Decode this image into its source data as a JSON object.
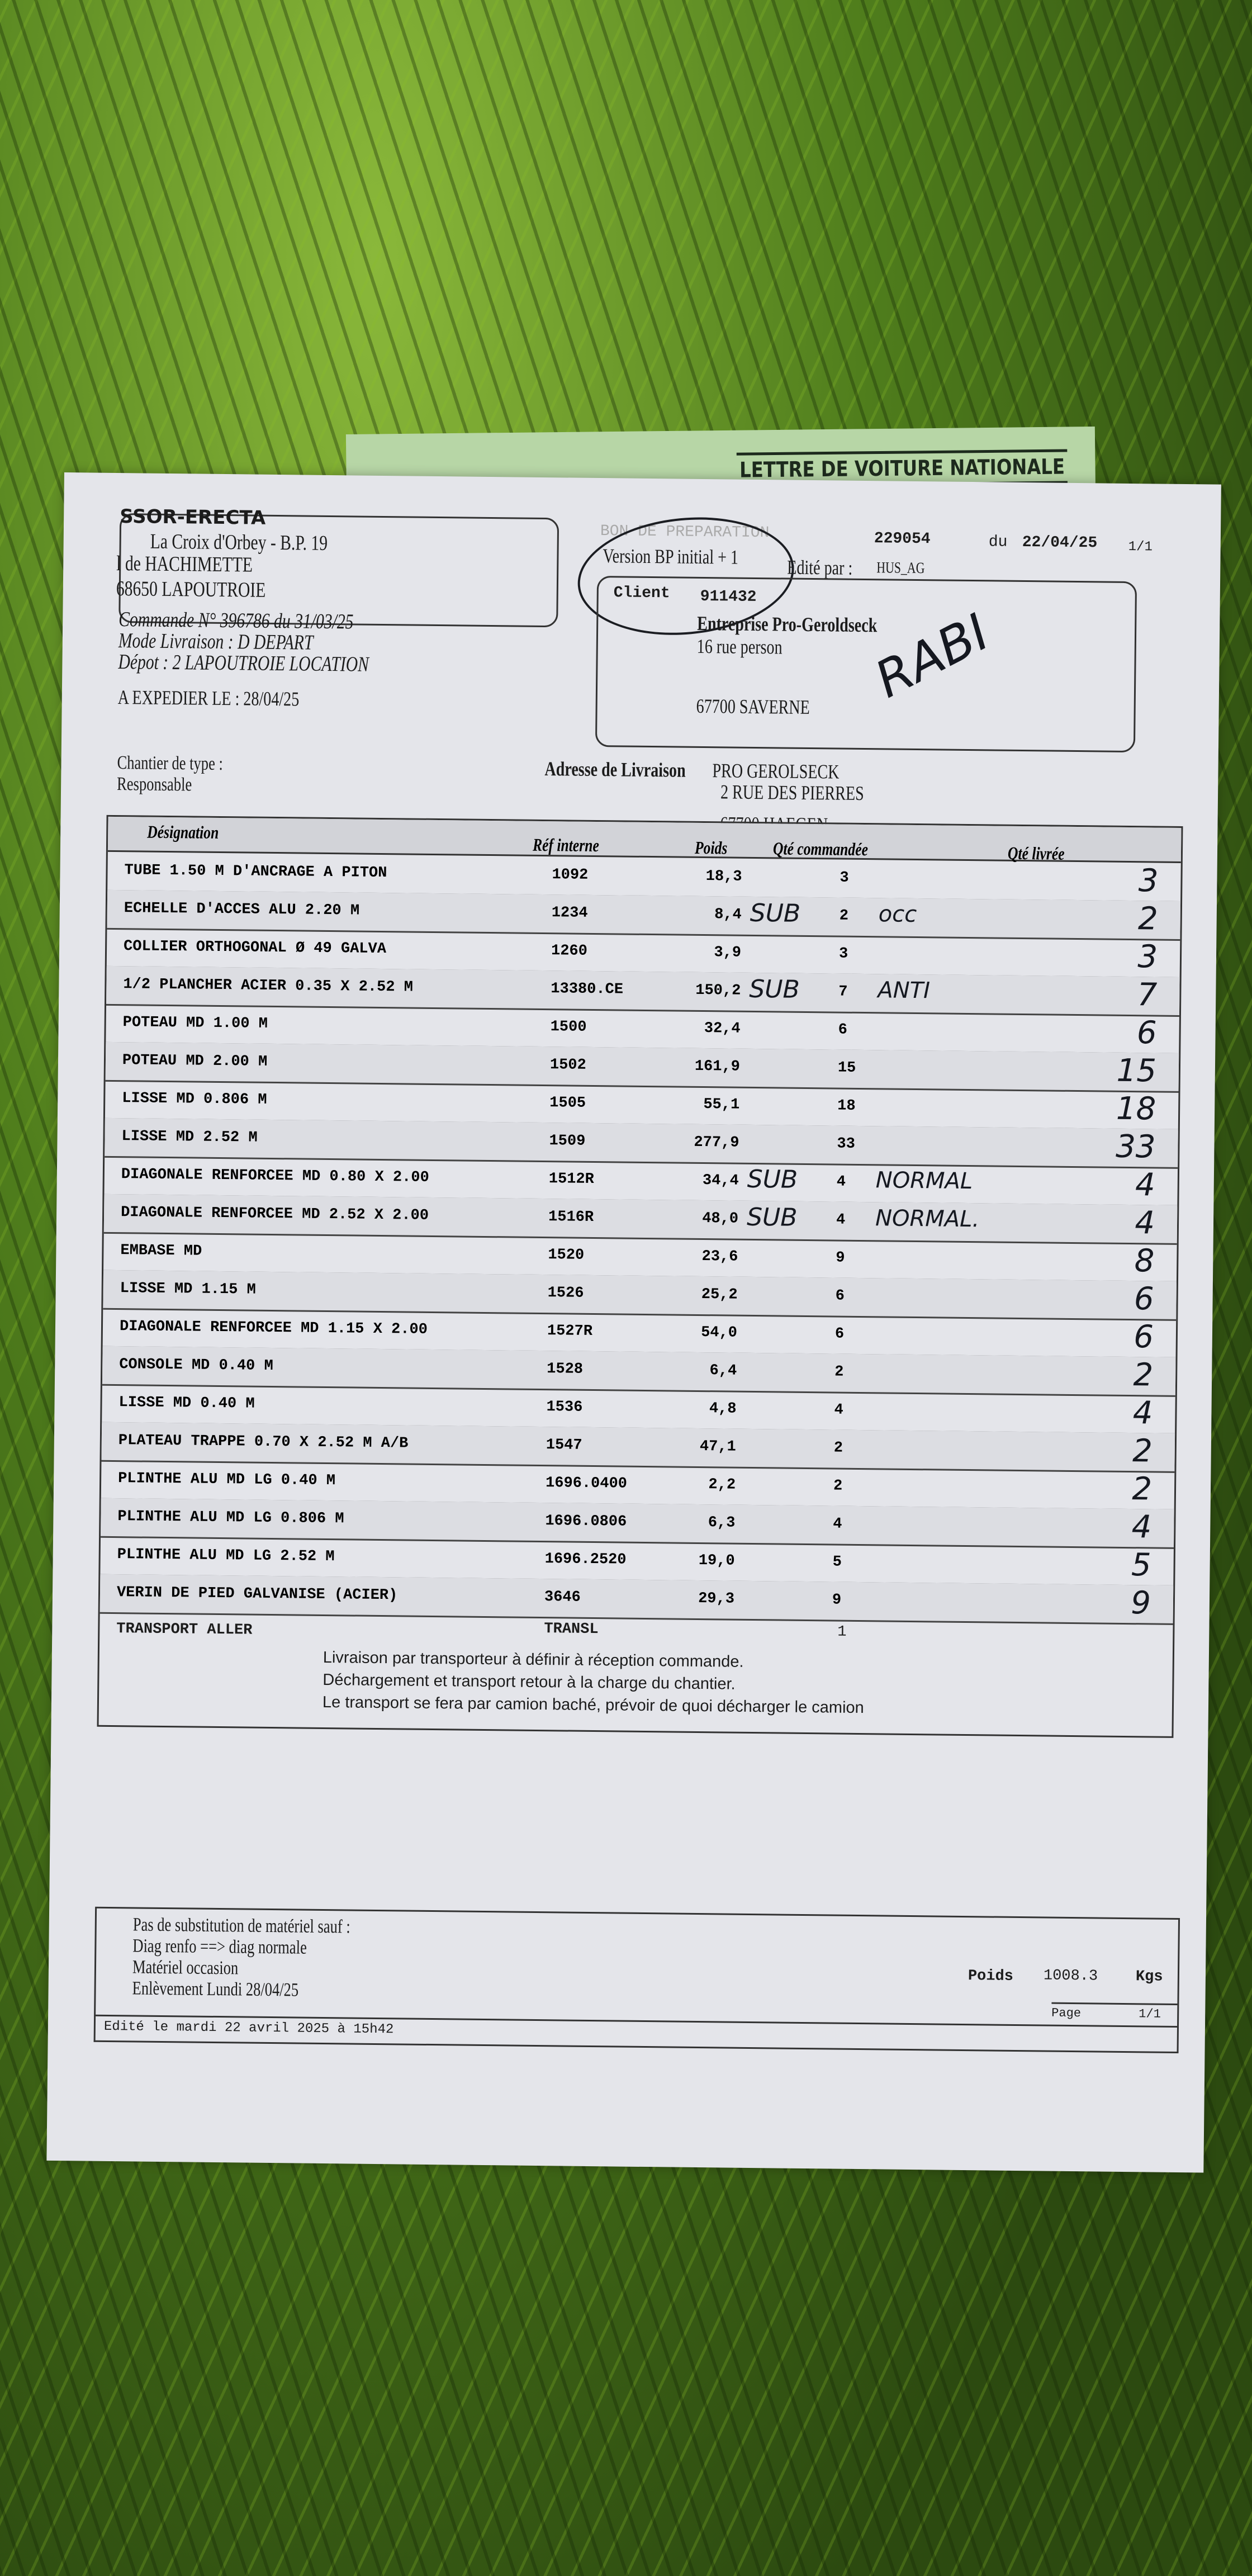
{
  "green_sheet": {
    "title": "LETTRE DE VOITURE NATIONALE"
  },
  "sender": {
    "name": "SSOR-ERECTA",
    "line1": "La Croix d'Orbey - B.P. 19",
    "line2": "l de HACHIMETTE",
    "line3": "68650  LAPOUTROIE"
  },
  "order": {
    "commande": "Commande N° 396786 du 31/03/25",
    "mode": "Mode Livraison : D DEPART",
    "depot": "Dépot :   2 LAPOUTROIE LOCATION",
    "expedier": "A EXPEDIER LE : 28/04/25"
  },
  "doc": {
    "type": "BON DE PREPARATION",
    "number": "229054",
    "date_label": "du",
    "date": "22/04/25",
    "pages": "1/1",
    "version": "Version BP initial + 1",
    "edited_by_label": "Edité par :",
    "edited_by": "HUS_AG"
  },
  "client": {
    "label": "Client",
    "number": "911432",
    "name": "Entreprise Pro-Geroldseck",
    "street": "16 rue person",
    "city": "67700 SAVERNE",
    "handwritten": "RABI"
  },
  "site": {
    "chantier": "Chantier  de type :",
    "responsable": "Responsable"
  },
  "delivery": {
    "label": "Adresse de Livraison",
    "name": "PRO GEROLSECK",
    "street": "2 RUE DES PIERRES",
    "city": "67700 HAEGEN"
  },
  "table": {
    "headers": {
      "designation": "Désignation",
      "ref": "Réf interne",
      "poids": "Poids",
      "qte_cmd": "Qté commandée",
      "qte_livree": "Qté livrée"
    },
    "rows": [
      {
        "designation": "TUBE 1.50 M D'ANCRAGE A PITON",
        "ref": "1092",
        "poids": "18,3",
        "qte": "3",
        "sub": "",
        "note": "",
        "livree": "3"
      },
      {
        "designation": "ECHELLE D'ACCES ALU 2.20 M",
        "ref": "1234",
        "poids": "8,4",
        "qte": "2",
        "sub": "SUB",
        "note": "occ",
        "livree": "2"
      },
      {
        "designation": "COLLIER ORTHOGONAL Ø 49 GALVA",
        "ref": "1260",
        "poids": "3,9",
        "qte": "3",
        "sub": "",
        "note": "",
        "livree": "3"
      },
      {
        "designation": "1/2 PLANCHER ACIER 0.35 X 2.52 M",
        "ref": "13380.CE",
        "poids": "150,2",
        "qte": "7",
        "sub": "SUB",
        "note": "ANTI",
        "livree": "7"
      },
      {
        "designation": "POTEAU MD 1.00 M",
        "ref": "1500",
        "poids": "32,4",
        "qte": "6",
        "sub": "",
        "note": "",
        "livree": "6"
      },
      {
        "designation": "POTEAU MD 2.00 M",
        "ref": "1502",
        "poids": "161,9",
        "qte": "15",
        "sub": "",
        "note": "",
        "livree": "15"
      },
      {
        "designation": "LISSE MD 0.806 M",
        "ref": "1505",
        "poids": "55,1",
        "qte": "18",
        "sub": "",
        "note": "",
        "livree": "18"
      },
      {
        "designation": "LISSE MD 2.52 M",
        "ref": "1509",
        "poids": "277,9",
        "qte": "33",
        "sub": "",
        "note": "",
        "livree": "33"
      },
      {
        "designation": "DIAGONALE RENFORCEE MD 0.80 X 2.00",
        "ref": "1512R",
        "poids": "34,4",
        "qte": "4",
        "sub": "SUB",
        "note": "NORMAL",
        "livree": "4"
      },
      {
        "designation": "DIAGONALE RENFORCEE MD 2.52 X 2.00",
        "ref": "1516R",
        "poids": "48,0",
        "qte": "4",
        "sub": "SUB",
        "note": "NORMAL.",
        "livree": "4"
      },
      {
        "designation": "EMBASE MD",
        "ref": "1520",
        "poids": "23,6",
        "qte": "9",
        "sub": "",
        "note": "",
        "livree": "8"
      },
      {
        "designation": "LISSE MD 1.15 M",
        "ref": "1526",
        "poids": "25,2",
        "qte": "6",
        "sub": "",
        "note": "",
        "livree": "6"
      },
      {
        "designation": "DIAGONALE RENFORCEE MD 1.15 X 2.00",
        "ref": "1527R",
        "poids": "54,0",
        "qte": "6",
        "sub": "",
        "note": "",
        "livree": "6"
      },
      {
        "designation": "CONSOLE MD 0.40 M",
        "ref": "1528",
        "poids": "6,4",
        "qte": "2",
        "sub": "",
        "note": "",
        "livree": "2"
      },
      {
        "designation": "LISSE MD 0.40 M",
        "ref": "1536",
        "poids": "4,8",
        "qte": "4",
        "sub": "",
        "note": "",
        "livree": "4"
      },
      {
        "designation": "PLATEAU TRAPPE 0.70 X 2.52 M A/B",
        "ref": "1547",
        "poids": "47,1",
        "qte": "2",
        "sub": "",
        "note": "",
        "livree": "2"
      },
      {
        "designation": "PLINTHE ALU MD LG 0.40 M",
        "ref": "1696.0400",
        "poids": "2,2",
        "qte": "2",
        "sub": "",
        "note": "",
        "livree": "2"
      },
      {
        "designation": "PLINTHE ALU MD LG 0.806 M",
        "ref": "1696.0806",
        "poids": "6,3",
        "qte": "4",
        "sub": "",
        "note": "",
        "livree": "4"
      },
      {
        "designation": "PLINTHE ALU MD LG 2.52 M",
        "ref": "1696.2520",
        "poids": "19,0",
        "qte": "5",
        "sub": "",
        "note": "",
        "livree": "5"
      },
      {
        "designation": "VERIN DE PIED GALVANISE (ACIER)",
        "ref": "3646",
        "poids": "29,3",
        "qte": "9",
        "sub": "",
        "note": "",
        "livree": "9"
      }
    ],
    "transport": {
      "designation": "TRANSPORT ALLER",
      "ref": "TRANSL",
      "qte": "1"
    },
    "notes": [
      "Livraison par transporteur à définir à réception commande.",
      "Déchargement et transport retour à la charge du chantier.",
      "Le transport se fera par camion baché, prévoir de quoi décharger le camion"
    ]
  },
  "footer": {
    "lines": [
      "Pas de substitution de matériel sauf :",
      "Diag renfo ==> diag normale",
      "Matériel occasion",
      "Enlèvement Lundi 28/04/25"
    ],
    "poids_label": "Poids",
    "poids": "1008.3",
    "poids_unit": "Kgs",
    "page_label": "Page",
    "page": "1/1",
    "edited": "Edité le mardi 22 avril 2025 à 15h42"
  }
}
